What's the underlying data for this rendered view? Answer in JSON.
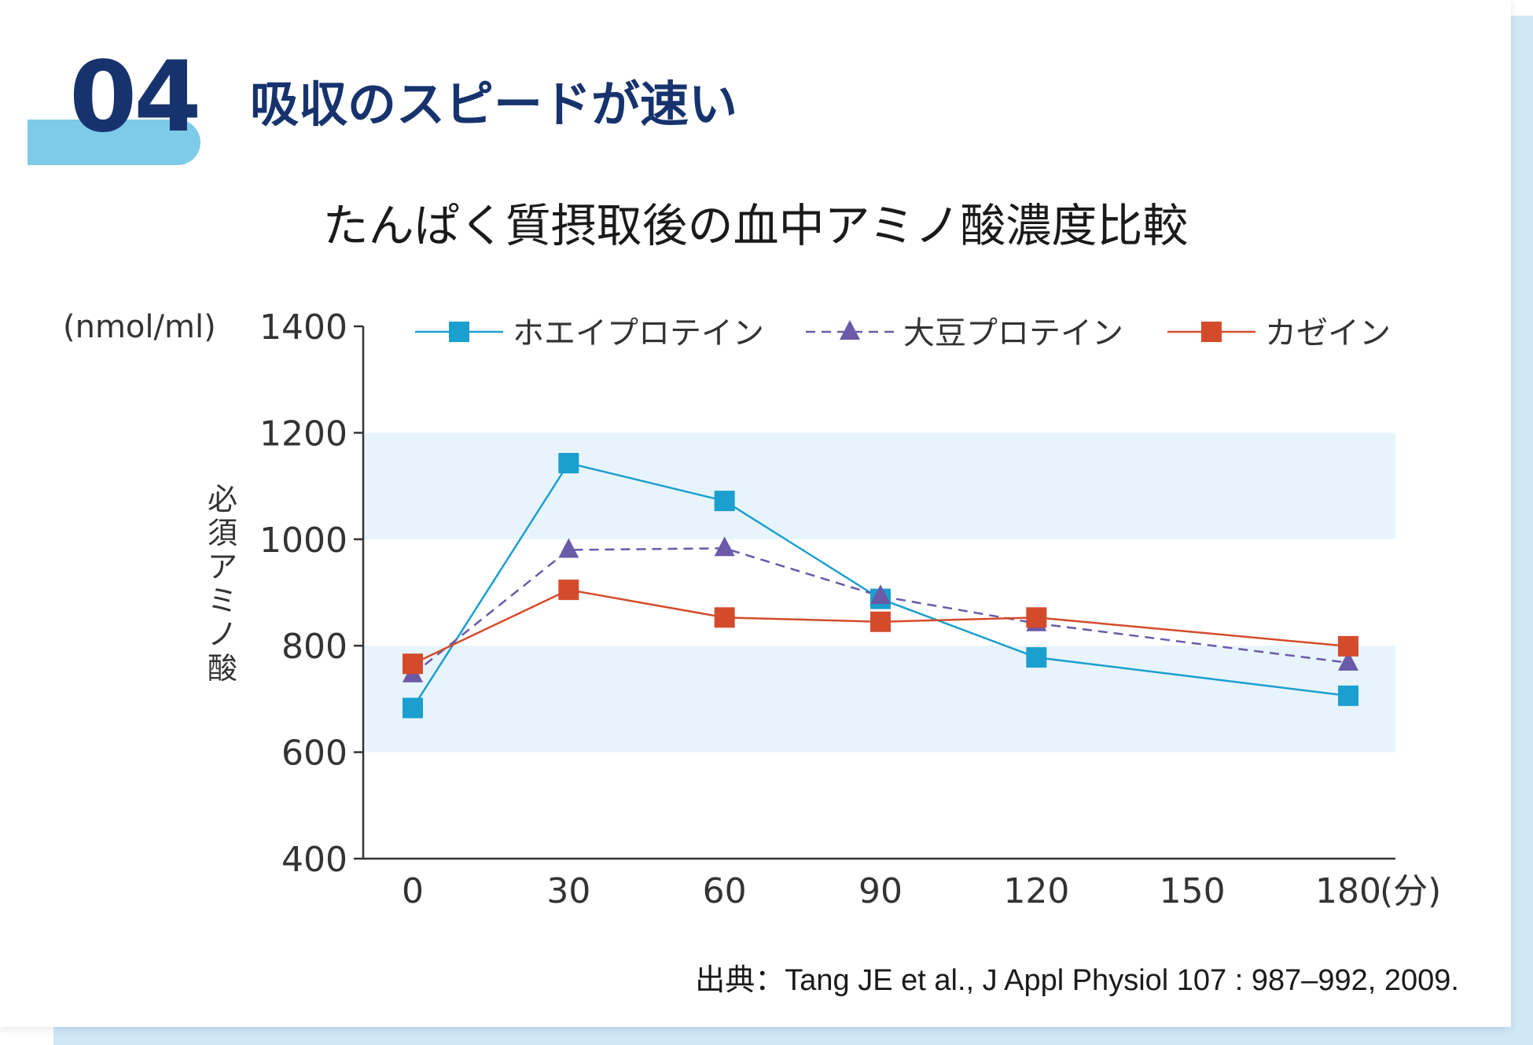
{
  "section": {
    "number": "04",
    "heading": "吸収のスピードが速い"
  },
  "citation": "出典：Tang JE et al., J Appl Physiol 107 : 987–992, 2009.",
  "colors": {
    "navy": "#17336e",
    "tab": "#7dcbe8",
    "band": "#e8f4fb",
    "whey": "#1a9fcf",
    "soy": "#6a5aa8",
    "casein": "#d44b2c"
  },
  "chart_data": {
    "type": "line",
    "title": "たんぱく質摂取後の血中アミノ酸濃度比較",
    "unit_label": "(nmol/ml)",
    "ylabel": "必須アミノ酸",
    "xlabel": "(分)",
    "x": [
      0,
      30,
      60,
      90,
      120,
      150,
      180
    ],
    "x_tick_labels": [
      "0",
      "30",
      "60",
      "90",
      "120",
      "150",
      "180"
    ],
    "xlim": [
      0,
      180
    ],
    "ylim": [
      400,
      1400
    ],
    "y_ticks": [
      400,
      600,
      800,
      1000,
      1200,
      1400
    ],
    "y_tick_labels": [
      "400",
      "600",
      "800",
      "1000",
      "1200",
      "1400"
    ],
    "shaded_bands": [
      [
        600,
        800
      ],
      [
        1000,
        1200
      ]
    ],
    "legend_position": "top",
    "series": [
      {
        "name": "ホエイプロテイン",
        "color": "#1a9fcf",
        "marker": "square",
        "line_style": "solid",
        "x": [
          0,
          30,
          60,
          90,
          120,
          180
        ],
        "values": [
          683,
          1143,
          1072,
          888,
          778,
          706
        ]
      },
      {
        "name": "大豆プロテイン",
        "color": "#6a5aa8",
        "marker": "triangle",
        "line_style": "dashed",
        "x": [
          0,
          30,
          60,
          90,
          120,
          180
        ],
        "values": [
          746,
          980,
          983,
          893,
          842,
          768
        ]
      },
      {
        "name": "カゼイン",
        "color": "#d44b2c",
        "marker": "square",
        "line_style": "solid",
        "x": [
          0,
          30,
          60,
          90,
          120,
          180
        ],
        "values": [
          766,
          905,
          853,
          845,
          853,
          799
        ]
      }
    ]
  }
}
